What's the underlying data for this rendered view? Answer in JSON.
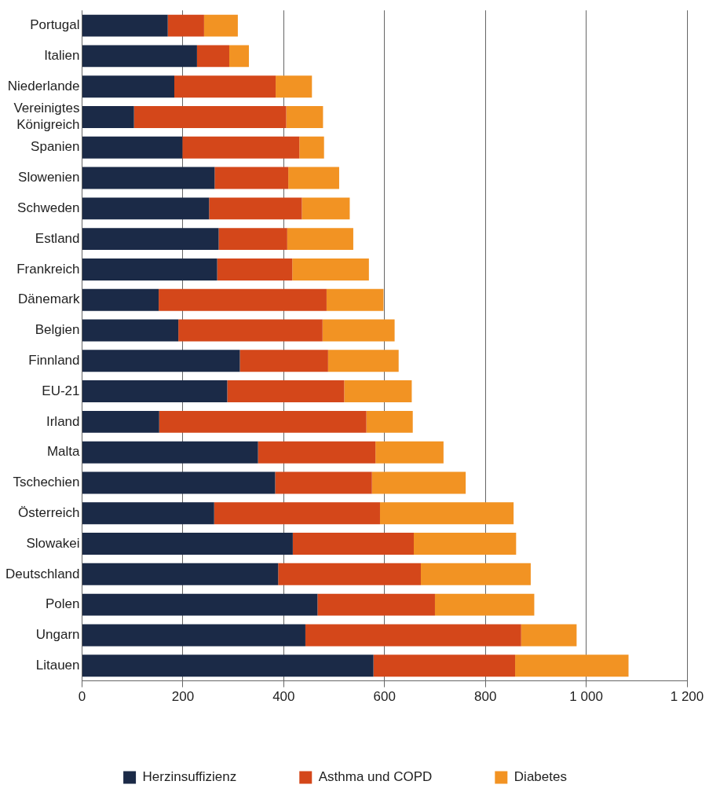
{
  "chart_data": {
    "type": "bar",
    "orientation": "horizontal",
    "stacked": true,
    "categories": [
      "Portugal",
      "Italien",
      "Niederlande",
      "Vereinigtes Königreich",
      "Spanien",
      "Slowenien",
      "Schweden",
      "Estland",
      "Frankreich",
      "Dänemark",
      "Belgien",
      "Finnland",
      "EU-21",
      "Irland",
      "Malta",
      "Tschechien",
      "Österreich",
      "Slowakei",
      "Deutschland",
      "Polen",
      "Ungarn",
      "Litauen"
    ],
    "series": [
      {
        "name": "Herzinsuffizienz",
        "color": "#1b2a47",
        "values": [
          170,
          228,
          183,
          103,
          199,
          263,
          252,
          271,
          268,
          152,
          191,
          313,
          288,
          153,
          349,
          383,
          262,
          418,
          389,
          467,
          443,
          578
        ]
      },
      {
        "name": "Asthma und COPD",
        "color": "#d4471a",
        "values": [
          72,
          64,
          201,
          302,
          232,
          146,
          184,
          136,
          149,
          333,
          286,
          175,
          232,
          411,
          233,
          192,
          329,
          240,
          283,
          233,
          428,
          281
        ]
      },
      {
        "name": "Diabetes",
        "color": "#f29323",
        "values": [
          67,
          39,
          72,
          73,
          49,
          101,
          95,
          131,
          152,
          113,
          143,
          140,
          134,
          92,
          135,
          186,
          265,
          203,
          218,
          197,
          110,
          225
        ]
      }
    ],
    "xlim": [
      0,
      1200
    ],
    "xticks": [
      0,
      200,
      400,
      600,
      800,
      {
        "value": 1000,
        "label": "1 000"
      },
      {
        "value": 1200,
        "label": "1 200"
      }
    ],
    "grid": "x",
    "legend": "bottom"
  }
}
